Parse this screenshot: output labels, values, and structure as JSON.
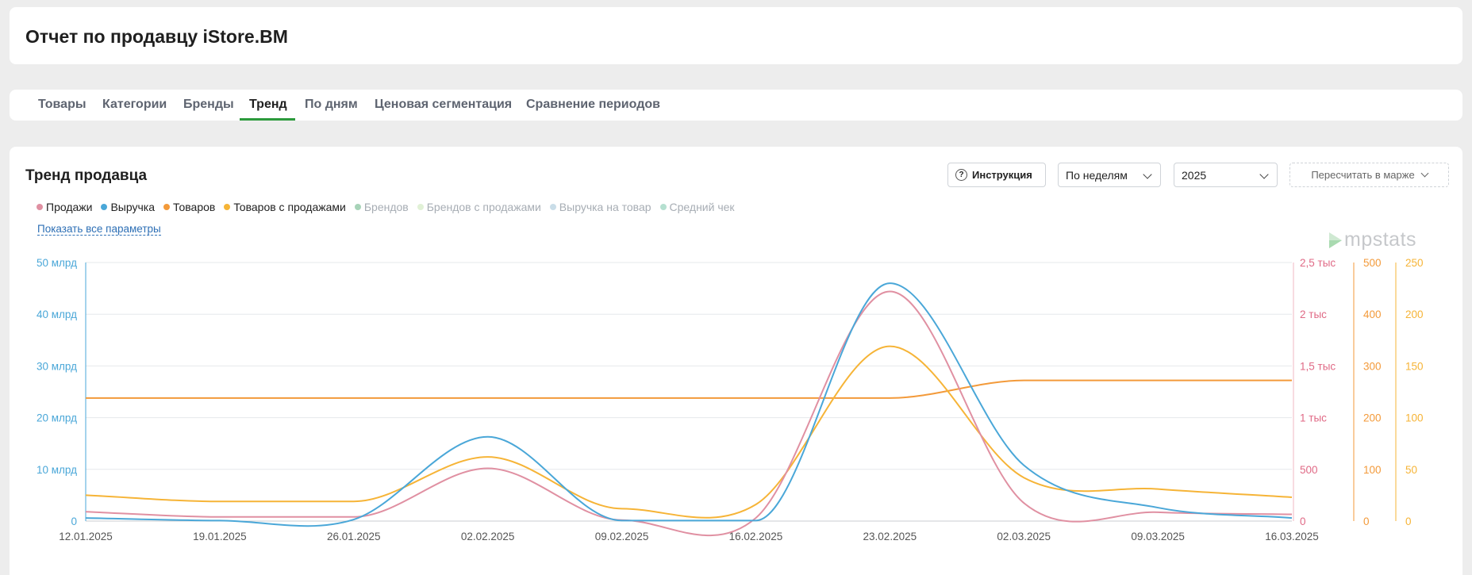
{
  "header": {
    "title": "Отчет по продавцу iStore.BM"
  },
  "tabs": [
    {
      "label": "Товары"
    },
    {
      "label": "Категории"
    },
    {
      "label": "Бренды"
    },
    {
      "label": "Тренд",
      "active": true
    },
    {
      "label": "По дням"
    },
    {
      "label": "Ценовая сегментация"
    },
    {
      "label": "Сравнение периодов"
    }
  ],
  "section": {
    "title": "Тренд продавца",
    "instruction_label": "Инструкция",
    "period_value": "По неделям",
    "year_value": "2025",
    "margin_label": "Пересчитать в марже",
    "show_all_label": "Показать все параметры",
    "logo_text": "mpstats"
  },
  "legend": [
    {
      "label": "Продажи",
      "color": "#e090a2",
      "active": true
    },
    {
      "label": "Выручка",
      "color": "#4aa7d8",
      "active": true
    },
    {
      "label": "Товаров",
      "color": "#f39a3a",
      "active": true
    },
    {
      "label": "Товаров с продажами",
      "color": "#f6b437",
      "active": true
    },
    {
      "label": "Брендов",
      "color": "#a7d3b8",
      "active": false
    },
    {
      "label": "Брендов с продажами",
      "color": "#e1f1d6",
      "active": false
    },
    {
      "label": "Выручка на товар",
      "color": "#c9dde8",
      "active": false
    },
    {
      "label": "Средний чек",
      "color": "#b5e0d0",
      "active": false
    }
  ],
  "chart_data": {
    "type": "line",
    "x": [
      "12.01.2025",
      "19.01.2025",
      "26.01.2025",
      "02.02.2025",
      "09.02.2025",
      "16.02.2025",
      "23.02.2025",
      "02.03.2025",
      "09.03.2025",
      "16.03.2025"
    ],
    "axes": {
      "revenue": {
        "ticks": [
          "0",
          "10 млрд",
          "20 млрд",
          "30 млрд",
          "40 млрд",
          "50 млрд"
        ],
        "range": [
          0,
          50
        ],
        "unit": "млрд",
        "color": "#4aa7d8"
      },
      "sales": {
        "ticks": [
          "0",
          "500",
          "1 тыс",
          "1,5 тыс",
          "2 тыс",
          "2,5 тыс"
        ],
        "range": [
          0,
          2500
        ],
        "color": "#e06a86"
      },
      "products": {
        "ticks": [
          "0",
          "100",
          "200",
          "300",
          "400",
          "500"
        ],
        "range": [
          0,
          500
        ],
        "color": "#f39a3a"
      },
      "products_with_sales": {
        "ticks": [
          "0",
          "50",
          "100",
          "150",
          "200",
          "250"
        ],
        "range": [
          0,
          250
        ],
        "color": "#f6b437"
      }
    },
    "series": [
      {
        "name": "Выручка",
        "axis": "revenue",
        "color": "#4aa7d8",
        "values": [
          0.6,
          0.1,
          0.3,
          16.3,
          0.1,
          0.1,
          46.0,
          10.8,
          2.6,
          0.6
        ]
      },
      {
        "name": "Продажи",
        "axis": "sales",
        "color": "#e090a2",
        "values": [
          90,
          40,
          40,
          510,
          10,
          30,
          2220,
          175,
          85,
          65
        ]
      },
      {
        "name": "Товаров",
        "axis": "products",
        "color": "#f39a3a",
        "values": [
          238,
          238,
          238,
          238,
          238,
          238,
          238,
          272,
          272,
          272
        ]
      },
      {
        "name": "Товаров с продажами",
        "axis": "products_with_sales",
        "color": "#f6b437",
        "values": [
          25,
          19,
          19,
          62,
          12,
          16,
          169,
          42,
          31,
          23
        ]
      }
    ],
    "grid": true
  }
}
